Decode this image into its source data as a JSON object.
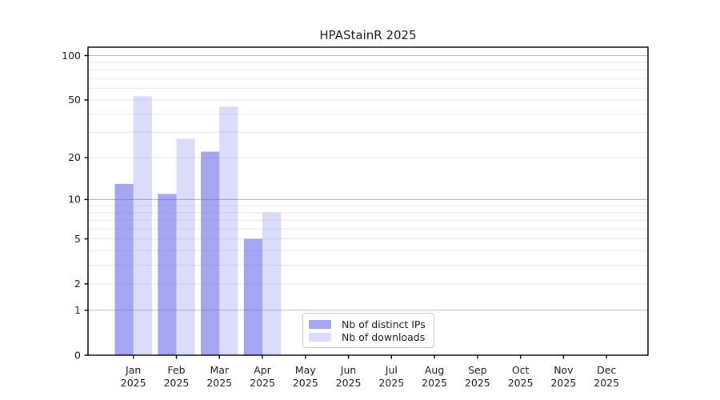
{
  "chart_data": {
    "type": "bar",
    "title": "HPAStainR 2025",
    "year_label": "2025",
    "categories": [
      "Jan",
      "Feb",
      "Mar",
      "Apr",
      "May",
      "Jun",
      "Jul",
      "Aug",
      "Sep",
      "Oct",
      "Nov",
      "Dec"
    ],
    "series": [
      {
        "name": "Nb of distinct IPs",
        "values": [
          13,
          11,
          22,
          5,
          0,
          0,
          0,
          0,
          0,
          0,
          0,
          0
        ],
        "color": "rgba(100,100,232,0.58)",
        "legend_color": "#a5a5f0"
      },
      {
        "name": "Nb of downloads",
        "values": [
          53,
          27,
          45,
          8,
          0,
          0,
          0,
          0,
          0,
          0,
          0,
          0
        ],
        "color": "rgba(100,100,232,0.23)",
        "legend_color": "#dcdcf8"
      }
    ],
    "yscale": "log1p",
    "ylim": [
      0,
      100
    ],
    "ytick_labels": [
      0,
      1,
      2,
      5,
      10,
      20,
      50,
      100
    ],
    "ygrid_major": [
      1,
      10,
      100
    ],
    "ygrid_minor": [
      2,
      3,
      4,
      5,
      6,
      7,
      8,
      9,
      20,
      30,
      40,
      50,
      60,
      70,
      80,
      90
    ],
    "grid": true,
    "legend_position": "lower center",
    "colors": {
      "axis": "#000000",
      "major_grid": "#bdbdbd",
      "minor_grid": "#e9e9e9",
      "text": "#1a1a1a",
      "legend_border": "#c9c9c9"
    }
  }
}
